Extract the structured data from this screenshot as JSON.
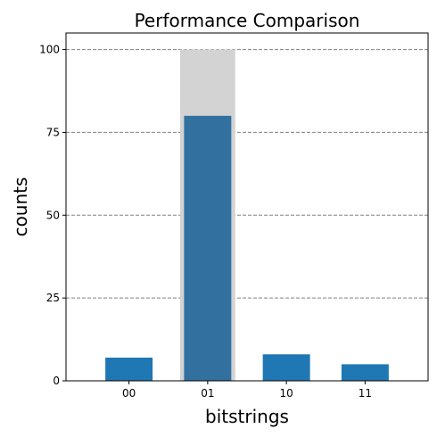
{
  "chart_data": {
    "type": "bar",
    "title": "Performance Comparison",
    "xlabel": "bitstrings",
    "ylabel": "counts",
    "categories": [
      "00",
      "01",
      "10",
      "11"
    ],
    "values": [
      7,
      80,
      8,
      5
    ],
    "highlight": {
      "category": "01",
      "value": 100,
      "color": "#d3d3d3"
    },
    "ylim": [
      0,
      105
    ],
    "yticks": [
      0,
      25,
      50,
      75,
      100
    ],
    "grid": {
      "axis": "y",
      "style": "dashed",
      "color": "#808080"
    },
    "colors": {
      "bar": "#1f77b4",
      "highlighted_bar": "#32719f"
    }
  }
}
